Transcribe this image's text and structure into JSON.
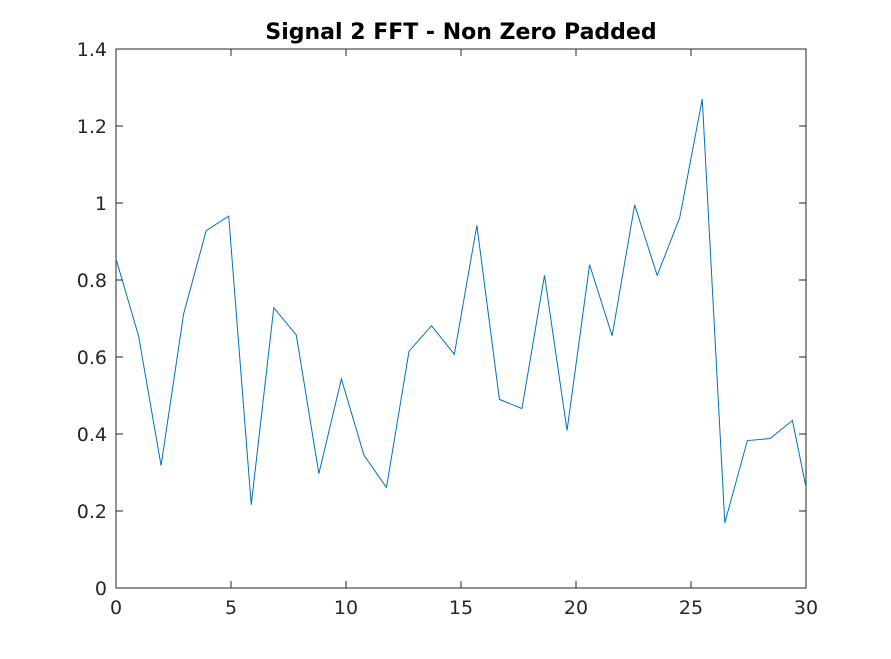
{
  "chart_data": {
    "type": "line",
    "title": "Signal 2 FFT - Non Zero Padded",
    "xlabel": "",
    "ylabel": "",
    "xlim": [
      0,
      30
    ],
    "ylim": [
      0,
      1.4
    ],
    "grid": false,
    "x_ticks": [
      0,
      5,
      10,
      15,
      20,
      25,
      30
    ],
    "y_ticks": [
      0,
      0.2,
      0.4,
      0.6,
      0.8,
      1,
      1.2,
      1.4
    ],
    "x_tick_labels": [
      "0",
      "5",
      "10",
      "15",
      "20",
      "25",
      "30"
    ],
    "y_tick_labels": [
      "0",
      "0.2",
      "0.4",
      "0.6",
      "0.8",
      "1",
      "1.2",
      "1.4"
    ],
    "line_color": "#0072BD",
    "series": [
      {
        "x": [
          0,
          0.98,
          1.96,
          2.94,
          3.92,
          4.9,
          5.88,
          6.86,
          7.84,
          8.82,
          9.8,
          10.78,
          11.76,
          12.74,
          13.72,
          14.71,
          15.69,
          16.67,
          17.65,
          18.63,
          19.61,
          20.59,
          21.57,
          22.55,
          23.53,
          24.51,
          25.49,
          26.47,
          27.45,
          28.43,
          29.41,
          30
        ],
        "values": [
          0.855,
          0.655,
          0.318,
          0.712,
          0.928,
          0.966,
          0.216,
          0.728,
          0.657,
          0.297,
          0.543,
          0.345,
          0.261,
          0.615,
          0.681,
          0.607,
          0.942,
          0.49,
          0.466,
          0.812,
          0.409,
          0.84,
          0.655,
          0.995,
          0.812,
          0.962,
          1.27,
          0.169,
          0.383,
          0.388,
          0.435,
          0.262
        ]
      }
    ]
  }
}
